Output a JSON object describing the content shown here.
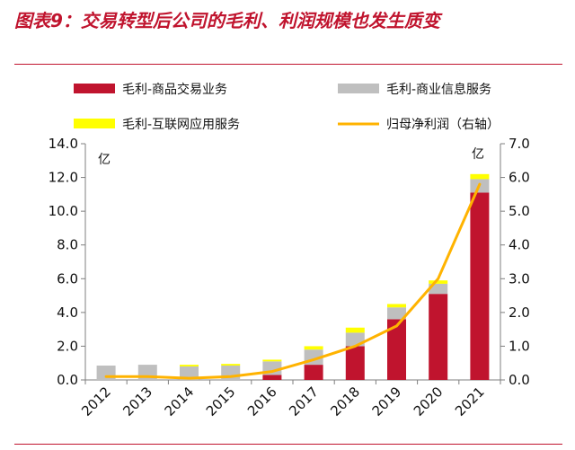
{
  "figure": {
    "title": "图表9：交易转型后公司的毛利、利润规模也发生质变"
  },
  "chart_data": {
    "type": "bar",
    "stacked": true,
    "categories": [
      "2012",
      "2013",
      "2014",
      "2015",
      "2016",
      "2017",
      "2018",
      "2019",
      "2020",
      "2021"
    ],
    "series": [
      {
        "name": "毛利-商品交易业务",
        "kind": "bar",
        "axis": "left",
        "color": "#c0142e",
        "values": [
          0.0,
          0.0,
          0.0,
          0.0,
          0.3,
          0.9,
          2.0,
          3.6,
          5.1,
          11.1
        ]
      },
      {
        "name": "毛利-商业信息服务",
        "kind": "bar",
        "axis": "left",
        "color": "#bfbfbf",
        "values": [
          0.85,
          0.9,
          0.8,
          0.85,
          0.8,
          0.9,
          0.8,
          0.7,
          0.6,
          0.8
        ]
      },
      {
        "name": "毛利-互联网应用服务",
        "kind": "bar",
        "axis": "left",
        "color": "#ffff00",
        "values": [
          0.0,
          0.0,
          0.1,
          0.1,
          0.1,
          0.2,
          0.3,
          0.2,
          0.2,
          0.3
        ]
      },
      {
        "name": "归母净利润（右轴）",
        "kind": "line",
        "axis": "right",
        "color": "#ffb300",
        "values": [
          0.1,
          0.1,
          0.05,
          0.1,
          0.25,
          0.6,
          1.0,
          1.6,
          3.0,
          5.8
        ]
      }
    ],
    "y_left": {
      "min": 0,
      "max": 14,
      "step": 2,
      "unit": "亿",
      "ticks": [
        "0.0",
        "2.0",
        "4.0",
        "6.0",
        "8.0",
        "10.0",
        "12.0",
        "14.0"
      ]
    },
    "y_right": {
      "min": 0,
      "max": 7,
      "step": 1,
      "unit": "亿",
      "ticks": [
        "0.0",
        "1.0",
        "2.0",
        "3.0",
        "4.0",
        "5.0",
        "6.0",
        "7.0"
      ]
    },
    "grid": false,
    "legend_position": "top"
  }
}
